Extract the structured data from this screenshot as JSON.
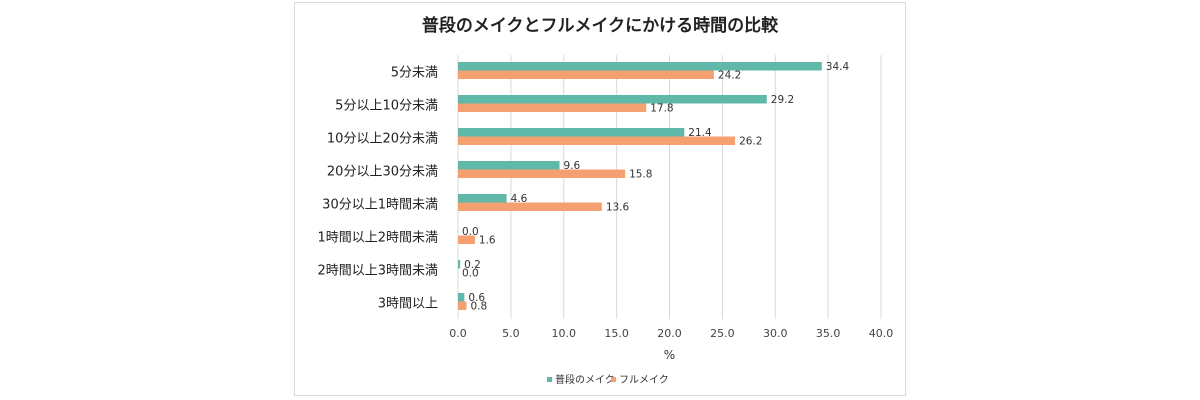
{
  "chart_data": {
    "type": "bar",
    "orientation": "horizontal",
    "title": "普段のメイクとフルメイクにかける時間の比較",
    "categories": [
      "5分未満",
      "5分以上10分未満",
      "10分以上20分未満",
      "20分以上30分未満",
      "30分以上1時間未満",
      "1時間以上2時間未満",
      "2時間以上3時間未満",
      "3時間以上"
    ],
    "series": [
      {
        "name": "普段のメイク",
        "color": "#5fb8a8",
        "values": [
          34.4,
          29.2,
          21.4,
          9.6,
          4.6,
          0.0,
          0.2,
          0.6
        ],
        "labels": [
          "34.4",
          "29.2",
          "21.4",
          "9.6",
          "4.6",
          "0.0",
          "0.2",
          "0.6"
        ]
      },
      {
        "name": "フルメイク",
        "color": "#f4a070",
        "values": [
          24.2,
          17.8,
          26.2,
          15.8,
          13.6,
          1.6,
          0.0,
          0.8
        ],
        "labels": [
          "24.2",
          "17.8",
          "26.2",
          "15.8",
          "13.6",
          "1.6",
          "0.0",
          "0.8"
        ]
      }
    ],
    "xlabel": "%",
    "xlim": [
      0,
      40
    ],
    "xticks": [
      "0.0",
      "5.0",
      "10.0",
      "15.0",
      "20.0",
      "25.0",
      "30.0",
      "35.0",
      "40.0"
    ],
    "grid": "vertical",
    "legend": "bottom"
  }
}
